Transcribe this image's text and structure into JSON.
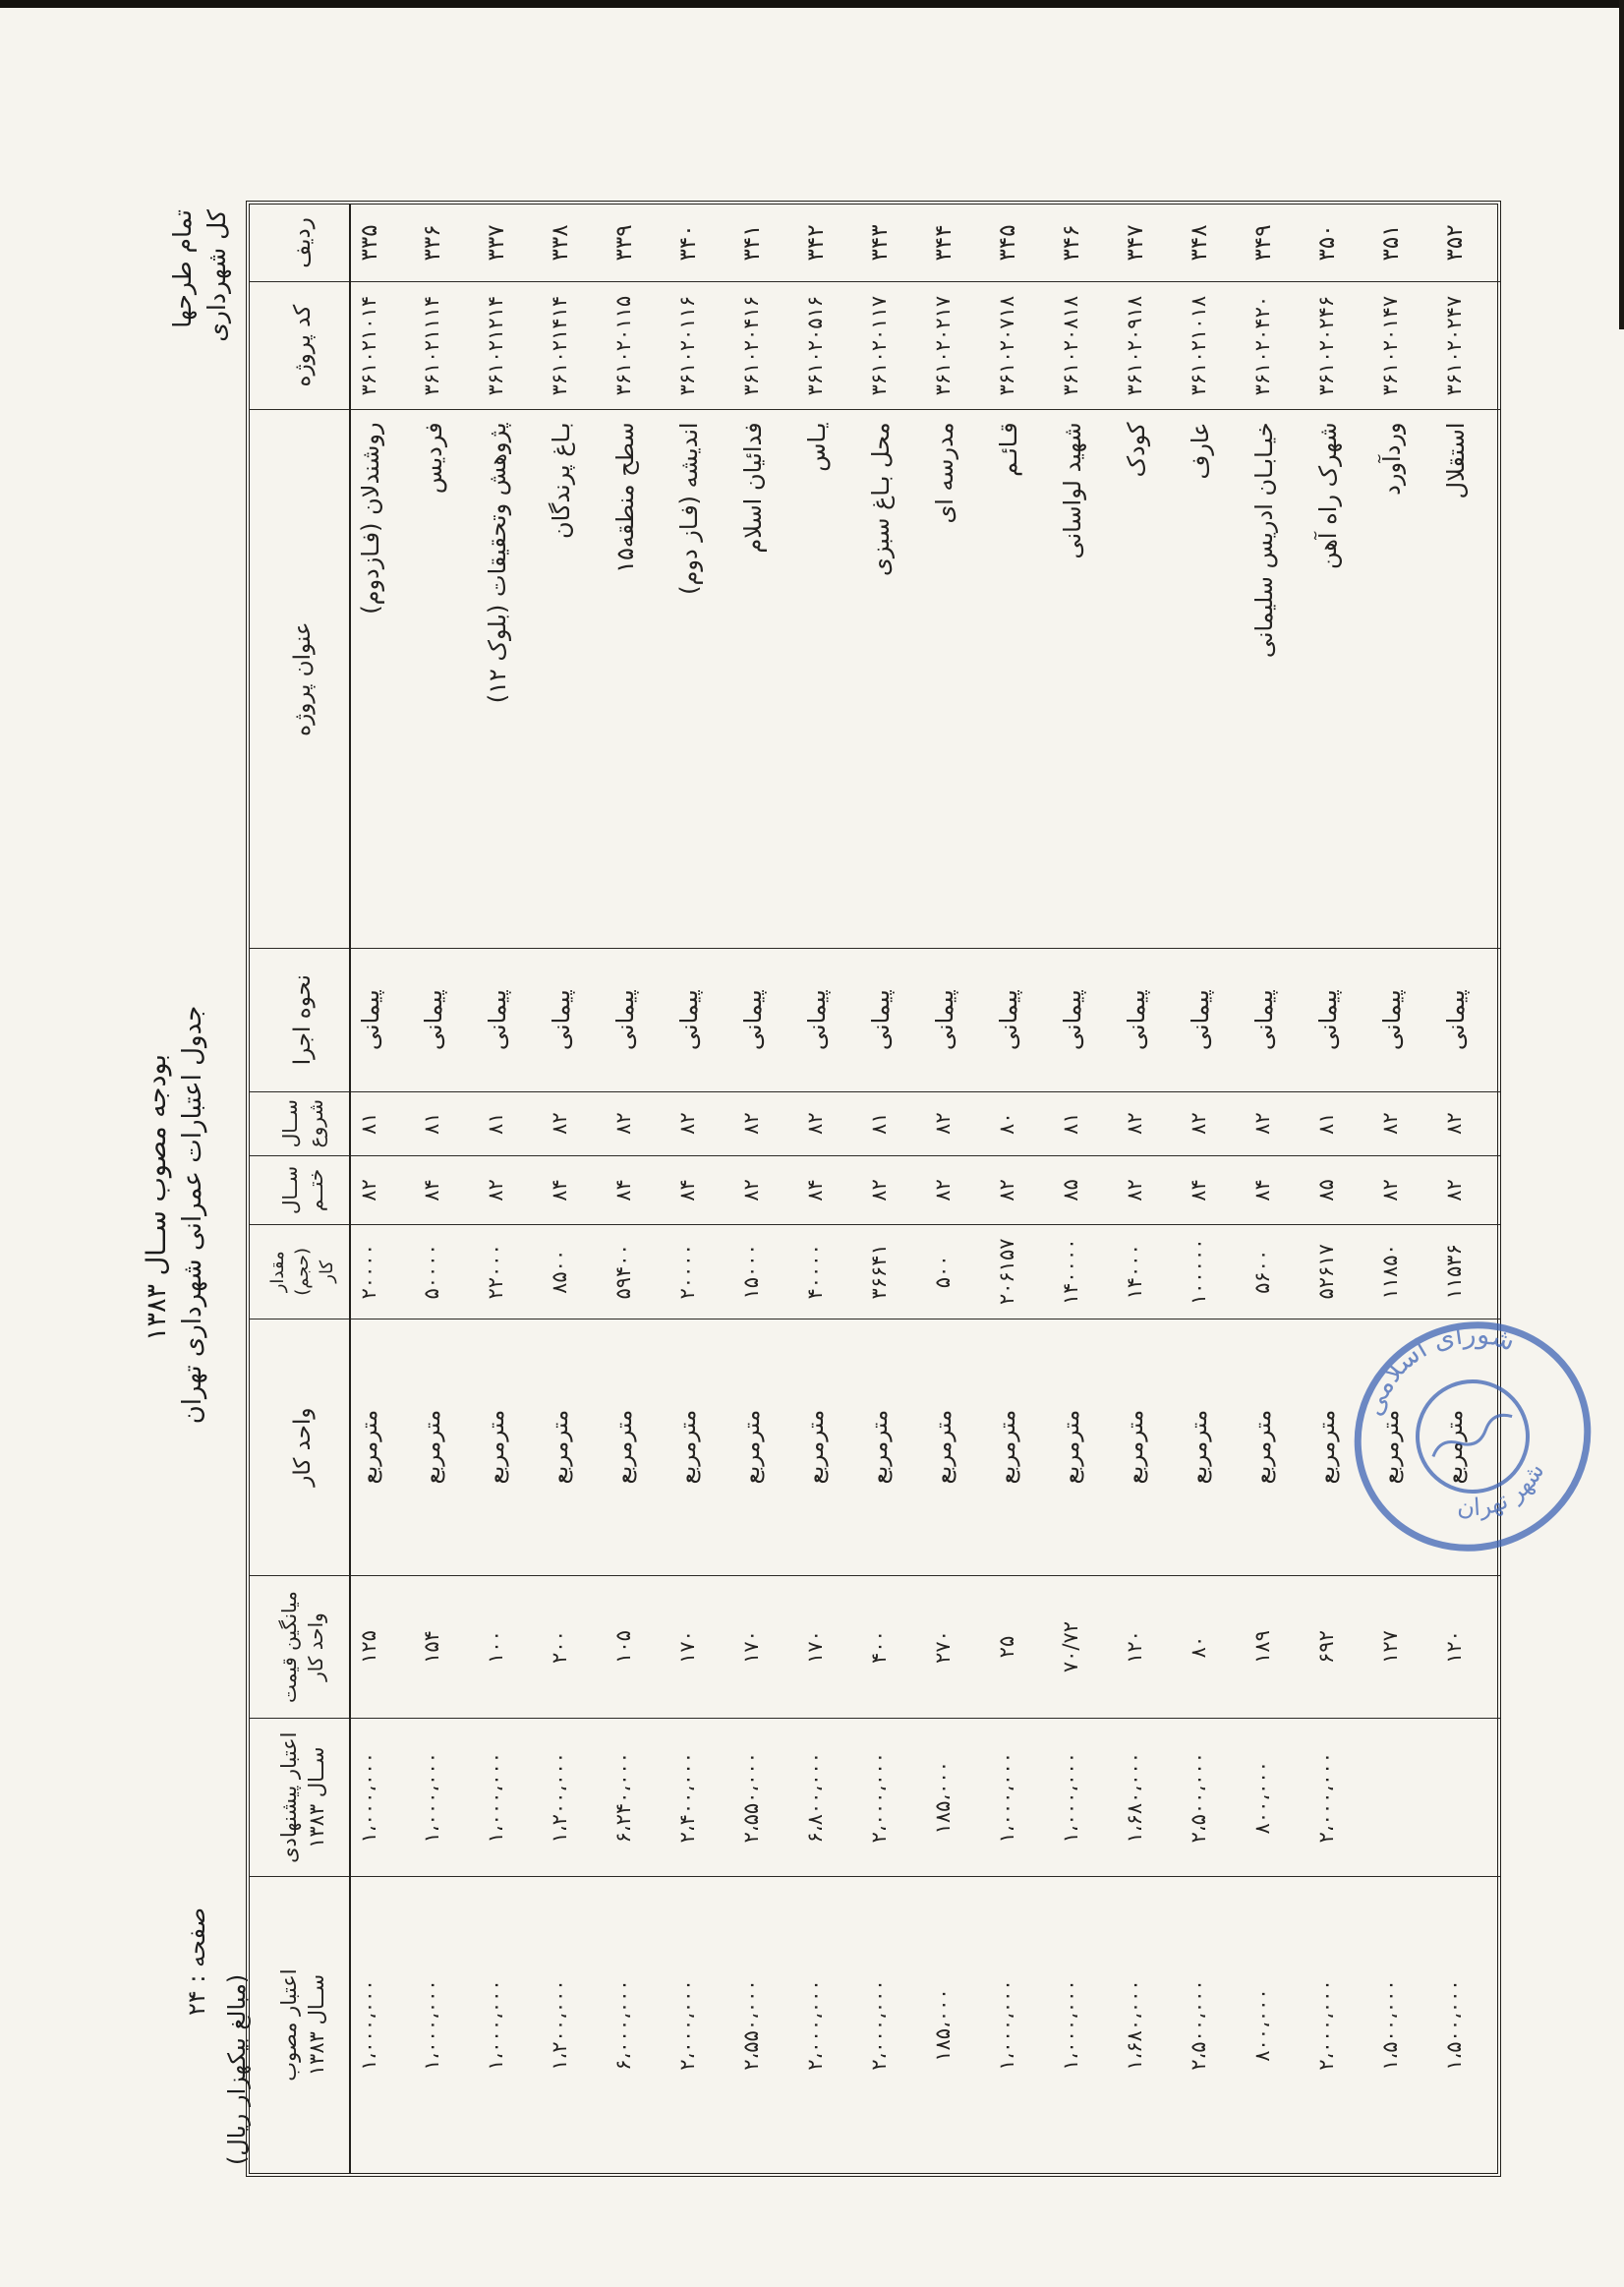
{
  "page": {
    "corner_line1": "تمام طرحها",
    "corner_line2": "کل شهرداری",
    "title_line1": "بودجه مصوب ســال ۱۳۸۳",
    "title_line2": "جدول اعتبارات عمرانی شهرداری تهران",
    "page_label": "صفحه : ۲۴",
    "amounts_note": "(مبالغ بیکهزار ریال)"
  },
  "stamp": {
    "line1": "شورای اسلامی",
    "line2": "شهر تهران",
    "color": "#3c62b5"
  },
  "table": {
    "headers": {
      "radif": {
        "l1": "ردیف"
      },
      "code": {
        "l1": "کد پروژه"
      },
      "title": {
        "l1": "عنوان پروژه"
      },
      "method": {
        "l1": "نحوه اجرا"
      },
      "start": {
        "l1": "ســال",
        "l2": "شروع"
      },
      "end": {
        "l1": "ســال",
        "l2": "ختــم"
      },
      "amount": {
        "l1": "مقدار (حجم)",
        "l2": "کار"
      },
      "unit": {
        "l1": "واحد کار"
      },
      "avg": {
        "l1": "میانگین قیمت",
        "l2": "واحد کار"
      },
      "proposed": {
        "l1": "اعتبار پیشنهادی",
        "l2": "ســال ۱۳۸۳"
      },
      "approved": {
        "l1": "اعتبار مصوب",
        "l2": "ســال ۱۳۸۳"
      }
    },
    "rows": [
      {
        "radif": "۳۳۵",
        "code": "۳۶۱۰۲۱۰۱۴",
        "title": "روشندلان (فـازدوم)",
        "method": "پیمانی",
        "start": "۸۱",
        "end": "۸۲",
        "amount": "۲۰۰۰۰",
        "unit": "مترمربع",
        "avg": "۱۲۵",
        "proposed": "۱،۰۰۰،۰۰۰",
        "approved": "۱،۰۰۰،۰۰۰"
      },
      {
        "radif": "۳۳۶",
        "code": "۳۶۱۰۲۱۱۱۴",
        "title": "فردیس",
        "method": "پیمانی",
        "start": "۸۱",
        "end": "۸۴",
        "amount": "۵۰۰۰۰",
        "unit": "مترمربع",
        "avg": "۱۵۴",
        "proposed": "۱،۰۰۰،۰۰۰",
        "approved": "۱،۰۰۰،۰۰۰"
      },
      {
        "radif": "۳۳۷",
        "code": "۳۶۱۰۲۱۲۱۴",
        "title": "پژوهش وتحقیقات (بلوک ۱۲)",
        "method": "پیمانی",
        "start": "۸۱",
        "end": "۸۲",
        "amount": "۲۲۰۰۰",
        "unit": "مترمربع",
        "avg": "۱۰۰",
        "proposed": "۱،۰۰۰،۰۰۰",
        "approved": "۱،۰۰۰،۰۰۰"
      },
      {
        "radif": "۳۳۸",
        "code": "۳۶۱۰۲۱۴۱۴",
        "title": "بـاغ پرندگان",
        "method": "پیمانی",
        "start": "۸۲",
        "end": "۸۴",
        "amount": "۸۵۰۰",
        "unit": "مترمربع",
        "avg": "۲۰۰",
        "proposed": "۱،۲۰۰،۰۰۰",
        "approved": "۱،۲۰۰،۰۰۰"
      },
      {
        "radif": "۳۳۹",
        "code": "۳۶۱۰۲۰۱۱۵",
        "title": "سطح منطقه۱۵",
        "method": "پیمانی",
        "start": "۸۲",
        "end": "۸۴",
        "amount": "۵۹۴۰۰",
        "unit": "مترمربع",
        "avg": "۱۰۵",
        "proposed": "۶،۲۴۰،۰۰۰",
        "approved": "۶،۰۰۰،۰۰۰"
      },
      {
        "radif": "۳۴۰",
        "code": "۳۶۱۰۲۰۱۱۶",
        "title": "اندیشه (فـاز دوم)",
        "method": "پیمانی",
        "start": "۸۲",
        "end": "۸۴",
        "amount": "۲۰۰۰۰",
        "unit": "مترمربع",
        "avg": "۱۷۰",
        "proposed": "۲،۴۰۰،۰۰۰",
        "approved": "۲،۰۰۰،۰۰۰"
      },
      {
        "radif": "۳۴۱",
        "code": "۳۶۱۰۲۰۴۱۶",
        "title": "فدائیان اسلام",
        "method": "پیمانی",
        "start": "۸۲",
        "end": "۸۲",
        "amount": "۱۵۰۰۰",
        "unit": "مترمربع",
        "avg": "۱۷۰",
        "proposed": "۲،۵۵۰،۰۰۰",
        "approved": "۲،۵۵۰،۰۰۰"
      },
      {
        "radif": "۳۴۲",
        "code": "۳۶۱۰۲۰۵۱۶",
        "title": "یـاس",
        "method": "پیمانی",
        "start": "۸۲",
        "end": "۸۴",
        "amount": "۴۰۰۰۰",
        "unit": "مترمربع",
        "avg": "۱۷۰",
        "proposed": "۶،۸۰۰،۰۰۰",
        "approved": "۲،۰۰۰،۰۰۰"
      },
      {
        "radif": "۳۴۳",
        "code": "۳۶۱۰۲۰۱۱۷",
        "title": "محل بـاغ سبزی",
        "method": "پیمانی",
        "start": "۸۱",
        "end": "۸۲",
        "amount": "۳۶۶۴۱",
        "unit": "مترمربع",
        "avg": "۴۰۰",
        "proposed": "۲،۰۰۰،۰۰۰",
        "approved": "۲،۰۰۰،۰۰۰"
      },
      {
        "radif": "۳۴۴",
        "code": "۳۶۱۰۲۰۲۱۷",
        "title": "مدرسه ای",
        "method": "پیمانی",
        "start": "۸۲",
        "end": "۸۲",
        "amount": "۵۰۰",
        "unit": "مترمربع",
        "avg": "۲۷۰",
        "proposed": "۱۸۵،۰۰۰",
        "approved": "۱۸۵،۰۰۰"
      },
      {
        "radif": "۳۴۵",
        "code": "۳۶۱۰۲۰۷۱۸",
        "title": "قـائـم",
        "method": "پیمانی",
        "start": "۸۰",
        "end": "۸۲",
        "amount": "۲۰۶۱۵۷",
        "unit": "مترمربع",
        "avg": "۲۵",
        "proposed": "۱،۰۰۰،۰۰۰",
        "approved": "۱،۰۰۰،۰۰۰"
      },
      {
        "radif": "۳۴۶",
        "code": "۳۶۱۰۲۰۸۱۸",
        "title": "شهید لواسانی",
        "method": "پیمانی",
        "start": "۸۱",
        "end": "۸۵",
        "amount": "۱۴۰۰۰۰",
        "unit": "مترمربع",
        "avg": "۷۰/۷۲",
        "proposed": "۱،۰۰۰،۰۰۰",
        "approved": "۱،۰۰۰،۰۰۰"
      },
      {
        "radif": "۳۴۷",
        "code": "۳۶۱۰۲۰۹۱۸",
        "title": "کودک",
        "method": "پیمانی",
        "start": "۸۲",
        "end": "۸۲",
        "amount": "۱۴۰۰۰",
        "unit": "مترمربع",
        "avg": "۱۲۰",
        "proposed": "۱،۶۸۰،۰۰۰",
        "approved": "۱،۶۸۰،۰۰۰"
      },
      {
        "radif": "۳۴۸",
        "code": "۳۶۱۰۲۱۰۱۸",
        "title": "عارف",
        "method": "پیمانی",
        "start": "۸۲",
        "end": "۸۴",
        "amount": "۱۰۰۰۰۰",
        "unit": "مترمربع",
        "avg": "۸۰",
        "proposed": "۲،۵۰۰،۰۰۰",
        "approved": "۲،۵۰۰،۰۰۰"
      },
      {
        "radif": "۳۴۹",
        "code": "۳۶۱۰۲۰۴۲۰",
        "title": "خیـابـان ادریس سلیمانی",
        "method": "پیمانی",
        "start": "۸۲",
        "end": "۸۴",
        "amount": "۵۶۰۰",
        "unit": "مترمربع",
        "avg": "۱۸۹",
        "proposed": "۸۰۰،۰۰۰",
        "approved": "۸۰۰،۰۰۰"
      },
      {
        "radif": "۳۵۰",
        "code": "۳۶۱۰۲۰۲۴۶",
        "title": "شهرک راه آهن",
        "method": "پیمانی",
        "start": "۸۱",
        "end": "۸۵",
        "amount": "۵۲۶۱۷",
        "unit": "مترمربع",
        "avg": "۶۹۲",
        "proposed": "۲،۰۰۰،۰۰۰",
        "approved": "۲،۰۰۰،۰۰۰"
      },
      {
        "radif": "۳۵۱",
        "code": "۳۶۱۰۲۰۱۴۷",
        "title": "وردآورد",
        "method": "پیمانی",
        "start": "۸۲",
        "end": "۸۲",
        "amount": "۱۱۸۵۰",
        "unit": "مترمربع",
        "avg": "۱۲۷",
        "proposed": "",
        "approved": "۱،۵۰۰،۰۰۰"
      },
      {
        "radif": "۳۵۲",
        "code": "۳۶۱۰۲۰۲۴۷",
        "title": "استقلال",
        "method": "پیمانی",
        "start": "۸۲",
        "end": "۸۲",
        "amount": "۱۱۵۳۶",
        "unit": "مترمربع",
        "avg": "۱۲۰",
        "proposed": "",
        "approved": "۱،۵۰۰،۰۰۰"
      }
    ]
  }
}
